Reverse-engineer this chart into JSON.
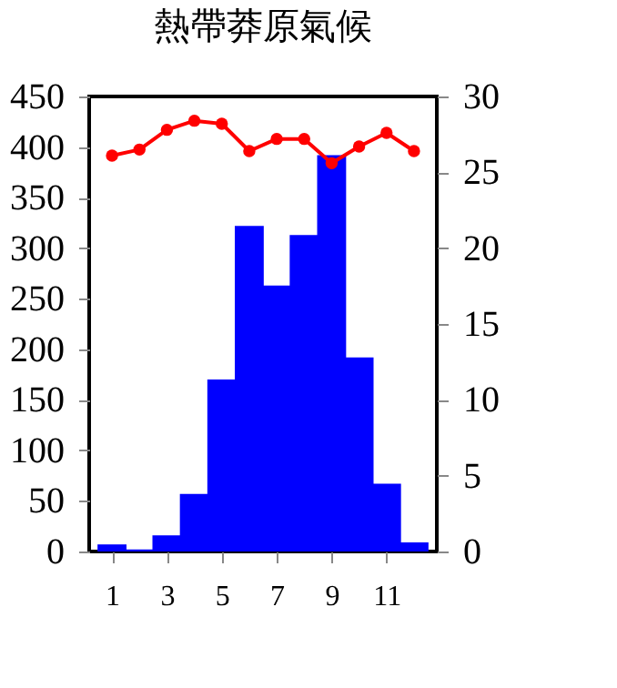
{
  "chart_data": {
    "type": "bar",
    "title": "熱帶莽原氣候",
    "x": [
      1,
      2,
      3,
      4,
      5,
      6,
      7,
      8,
      9,
      10,
      11,
      12
    ],
    "xlim": [
      0.5,
      12.5
    ],
    "xticks": [
      1,
      3,
      5,
      7,
      9,
      11
    ],
    "ylim": [
      0,
      450
    ],
    "yticks": [
      0,
      50,
      100,
      150,
      200,
      250,
      300,
      350,
      400,
      450
    ],
    "y2lim": [
      0,
      30
    ],
    "y2ticks": [
      0,
      5,
      10,
      15,
      20,
      25,
      30
    ],
    "series": [
      {
        "color": "#0000ff",
        "values": [
          7,
          2,
          16,
          57,
          170,
          322,
          263,
          313,
          392,
          192,
          67,
          9
        ]
      },
      {
        "type": "line",
        "axis": "y2",
        "color": "#ff0000",
        "marker": "circle",
        "values": [
          26.1,
          26.5,
          27.8,
          28.4,
          28.2,
          26.4,
          27.2,
          27.2,
          25.6,
          26.7,
          27.6,
          26.4
        ]
      }
    ],
    "grid": false
  }
}
